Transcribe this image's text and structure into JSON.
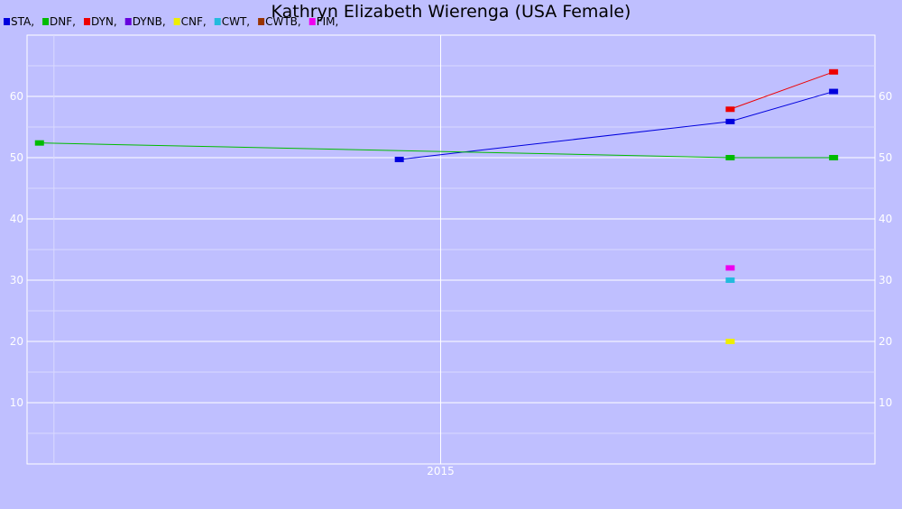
{
  "chart_data": {
    "type": "line",
    "title": "Kathryn Elizabeth Wierenga (USA Female)",
    "xlabel": "",
    "ylabel": "",
    "x_tick_labels": [
      {
        "label": "2015",
        "value": 2015.0
      }
    ],
    "xlim": [
      2014.0,
      2016.05
    ],
    "ylim": [
      0,
      70
    ],
    "y_ticks": [
      10,
      20,
      30,
      40,
      50,
      60
    ],
    "grid": true,
    "legend_position": "top-left",
    "legend": [
      {
        "name": "STA",
        "suffix": ",",
        "color": "#0000dd"
      },
      {
        "name": "DNF",
        "suffix": ",",
        "color": "#00bb00"
      },
      {
        "name": "DYN",
        "suffix": ",",
        "color": "#ee0000"
      },
      {
        "name": "DYNB",
        "suffix": ",",
        "color": "#6600dd"
      },
      {
        "name": "CNF",
        "suffix": ",",
        "color": "#eeee00"
      },
      {
        "name": "CWT",
        "suffix": ",",
        "color": "#22bbdd"
      },
      {
        "name": "CWTB",
        "suffix": ",",
        "color": "#993300"
      },
      {
        "name": "FIM",
        "suffix": ",",
        "color": "#ee00ee"
      }
    ],
    "series": [
      {
        "name": "STA",
        "color": "#0000dd",
        "points": [
          [
            2014.9,
            49.7
          ],
          [
            2015.7,
            55.9
          ],
          [
            2015.95,
            60.8
          ]
        ]
      },
      {
        "name": "DNF",
        "color": "#00bb00",
        "points": [
          [
            2014.03,
            52.4
          ],
          [
            2015.7,
            50.0
          ],
          [
            2015.95,
            50.0
          ]
        ]
      },
      {
        "name": "DYN",
        "color": "#ee0000",
        "points": [
          [
            2015.7,
            57.9
          ],
          [
            2015.95,
            64.0
          ]
        ]
      },
      {
        "name": "CNF",
        "color": "#eeee00",
        "points": [
          [
            2015.7,
            20.0
          ]
        ]
      },
      {
        "name": "CWT",
        "color": "#22bbdd",
        "points": [
          [
            2015.7,
            30.0
          ]
        ]
      },
      {
        "name": "FIM",
        "color": "#ee00ee",
        "points": [
          [
            2015.7,
            32.0
          ]
        ]
      }
    ]
  }
}
